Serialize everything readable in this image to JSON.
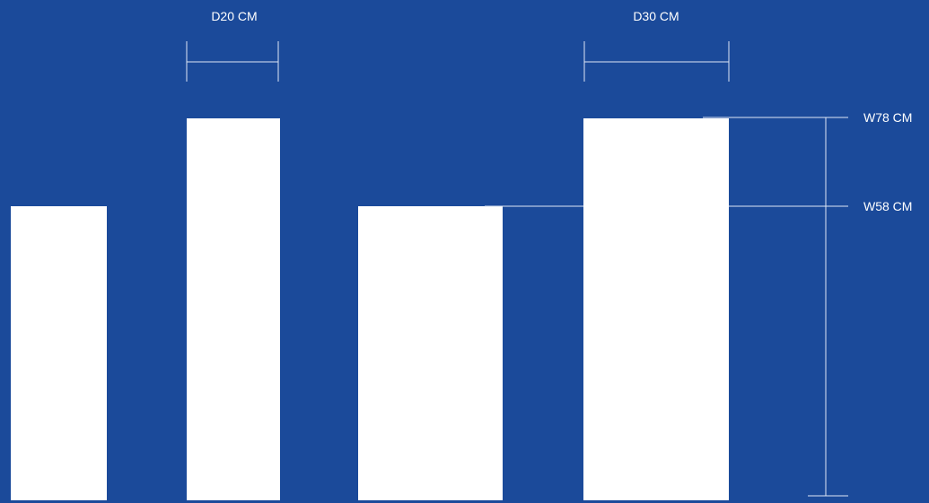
{
  "colors": {
    "background": "#1b4a9a",
    "shape": "#ffffff",
    "line": "#dfe7f5",
    "text": "#ffffff"
  },
  "labels": {
    "depth_small": "D20 CM",
    "depth_large": "D30 CM",
    "width_tall": "W78 CM",
    "width_short": "W58 CM"
  }
}
